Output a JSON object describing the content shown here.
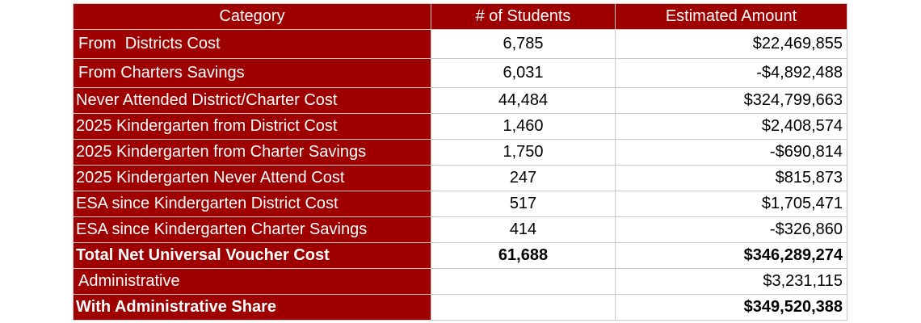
{
  "table": {
    "headers": [
      "Category",
      "# of Students",
      "Estimated Amount"
    ],
    "rows": [
      {
        "category": "From  Districts Cost",
        "students": "6,785",
        "amount": "$22,469,855"
      },
      {
        "category": "From Charters Savings",
        "students": "6,031",
        "amount": "-$4,892,488"
      },
      {
        "category": "Never Attended District/Charter Cost",
        "students": "44,484",
        "amount": "$324,799,663"
      },
      {
        "category": "2025 Kindergarten from District Cost",
        "students": "1,460",
        "amount": "$2,408,574"
      },
      {
        "category": "2025 Kindergarten from Charter Savings",
        "students": "1,750",
        "amount": "-$690,814"
      },
      {
        "category": "2025 Kindergarten Never Attend Cost",
        "students": "247",
        "amount": "$815,873"
      },
      {
        "category": "ESA since Kindergarten District Cost",
        "students": "517",
        "amount": "$1,705,471"
      },
      {
        "category": "ESA since Kindergarten Charter Savings",
        "students": "414",
        "amount": "-$326,860"
      },
      {
        "category": "Total Net Universal Voucher Cost",
        "students": "61,688",
        "amount": "$346,289,274"
      },
      {
        "category": "Administrative",
        "students": "",
        "amount": "$3,231,115"
      },
      {
        "category": "With Administrative Share",
        "students": "",
        "amount": "$349,520,388"
      }
    ]
  },
  "colors": {
    "header_bg": "#9e0000",
    "header_text": "#ffffff",
    "grid": "#c8c8c8"
  }
}
